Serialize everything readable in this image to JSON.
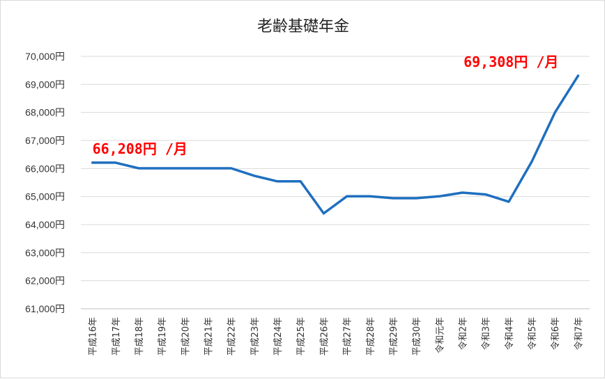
{
  "chart_data": {
    "type": "line",
    "title": "老齢基礎年金",
    "xlabel": "",
    "ylabel": "",
    "ylim": [
      61000,
      70000
    ],
    "yticks": [
      {
        "value": 61000,
        "label": "61,000円"
      },
      {
        "value": 62000,
        "label": "62,000円"
      },
      {
        "value": 63000,
        "label": "63,000円"
      },
      {
        "value": 64000,
        "label": "64,000円"
      },
      {
        "value": 65000,
        "label": "65,000円"
      },
      {
        "value": 66000,
        "label": "66,000円"
      },
      {
        "value": 67000,
        "label": "67,000円"
      },
      {
        "value": 68000,
        "label": "68,000円"
      },
      {
        "value": 69000,
        "label": "69,000円"
      },
      {
        "value": 70000,
        "label": "70,000円"
      }
    ],
    "categories": [
      "平成16年",
      "平成17年",
      "平成18年",
      "平成19年",
      "平成20年",
      "平成21年",
      "平成22年",
      "平成23年",
      "平成24年",
      "平成25年",
      "平成26年",
      "平成27年",
      "平成28年",
      "平成29年",
      "平成30年",
      "令和元年",
      "令和2年",
      "令和3年",
      "令和4年",
      "令和5年",
      "令和6年",
      "令和7年"
    ],
    "series": [
      {
        "values": [
          66208,
          66208,
          66008,
          66008,
          66008,
          66008,
          66008,
          65741,
          65541,
          65541,
          64400,
          65008,
          65008,
          64941,
          64941,
          65008,
          65141,
          65075,
          64816,
          66250,
          68000,
          69308
        ],
        "color": "#1f6fbf"
      }
    ],
    "annotations": [
      {
        "text": "66,208円 /月",
        "category_index": 0,
        "value": 66208,
        "color": "#ff0000"
      },
      {
        "text": "69,308円 /月",
        "category_index": 21,
        "value": 69308,
        "color": "#ff0000"
      }
    ],
    "grid": true,
    "legend": "none"
  }
}
